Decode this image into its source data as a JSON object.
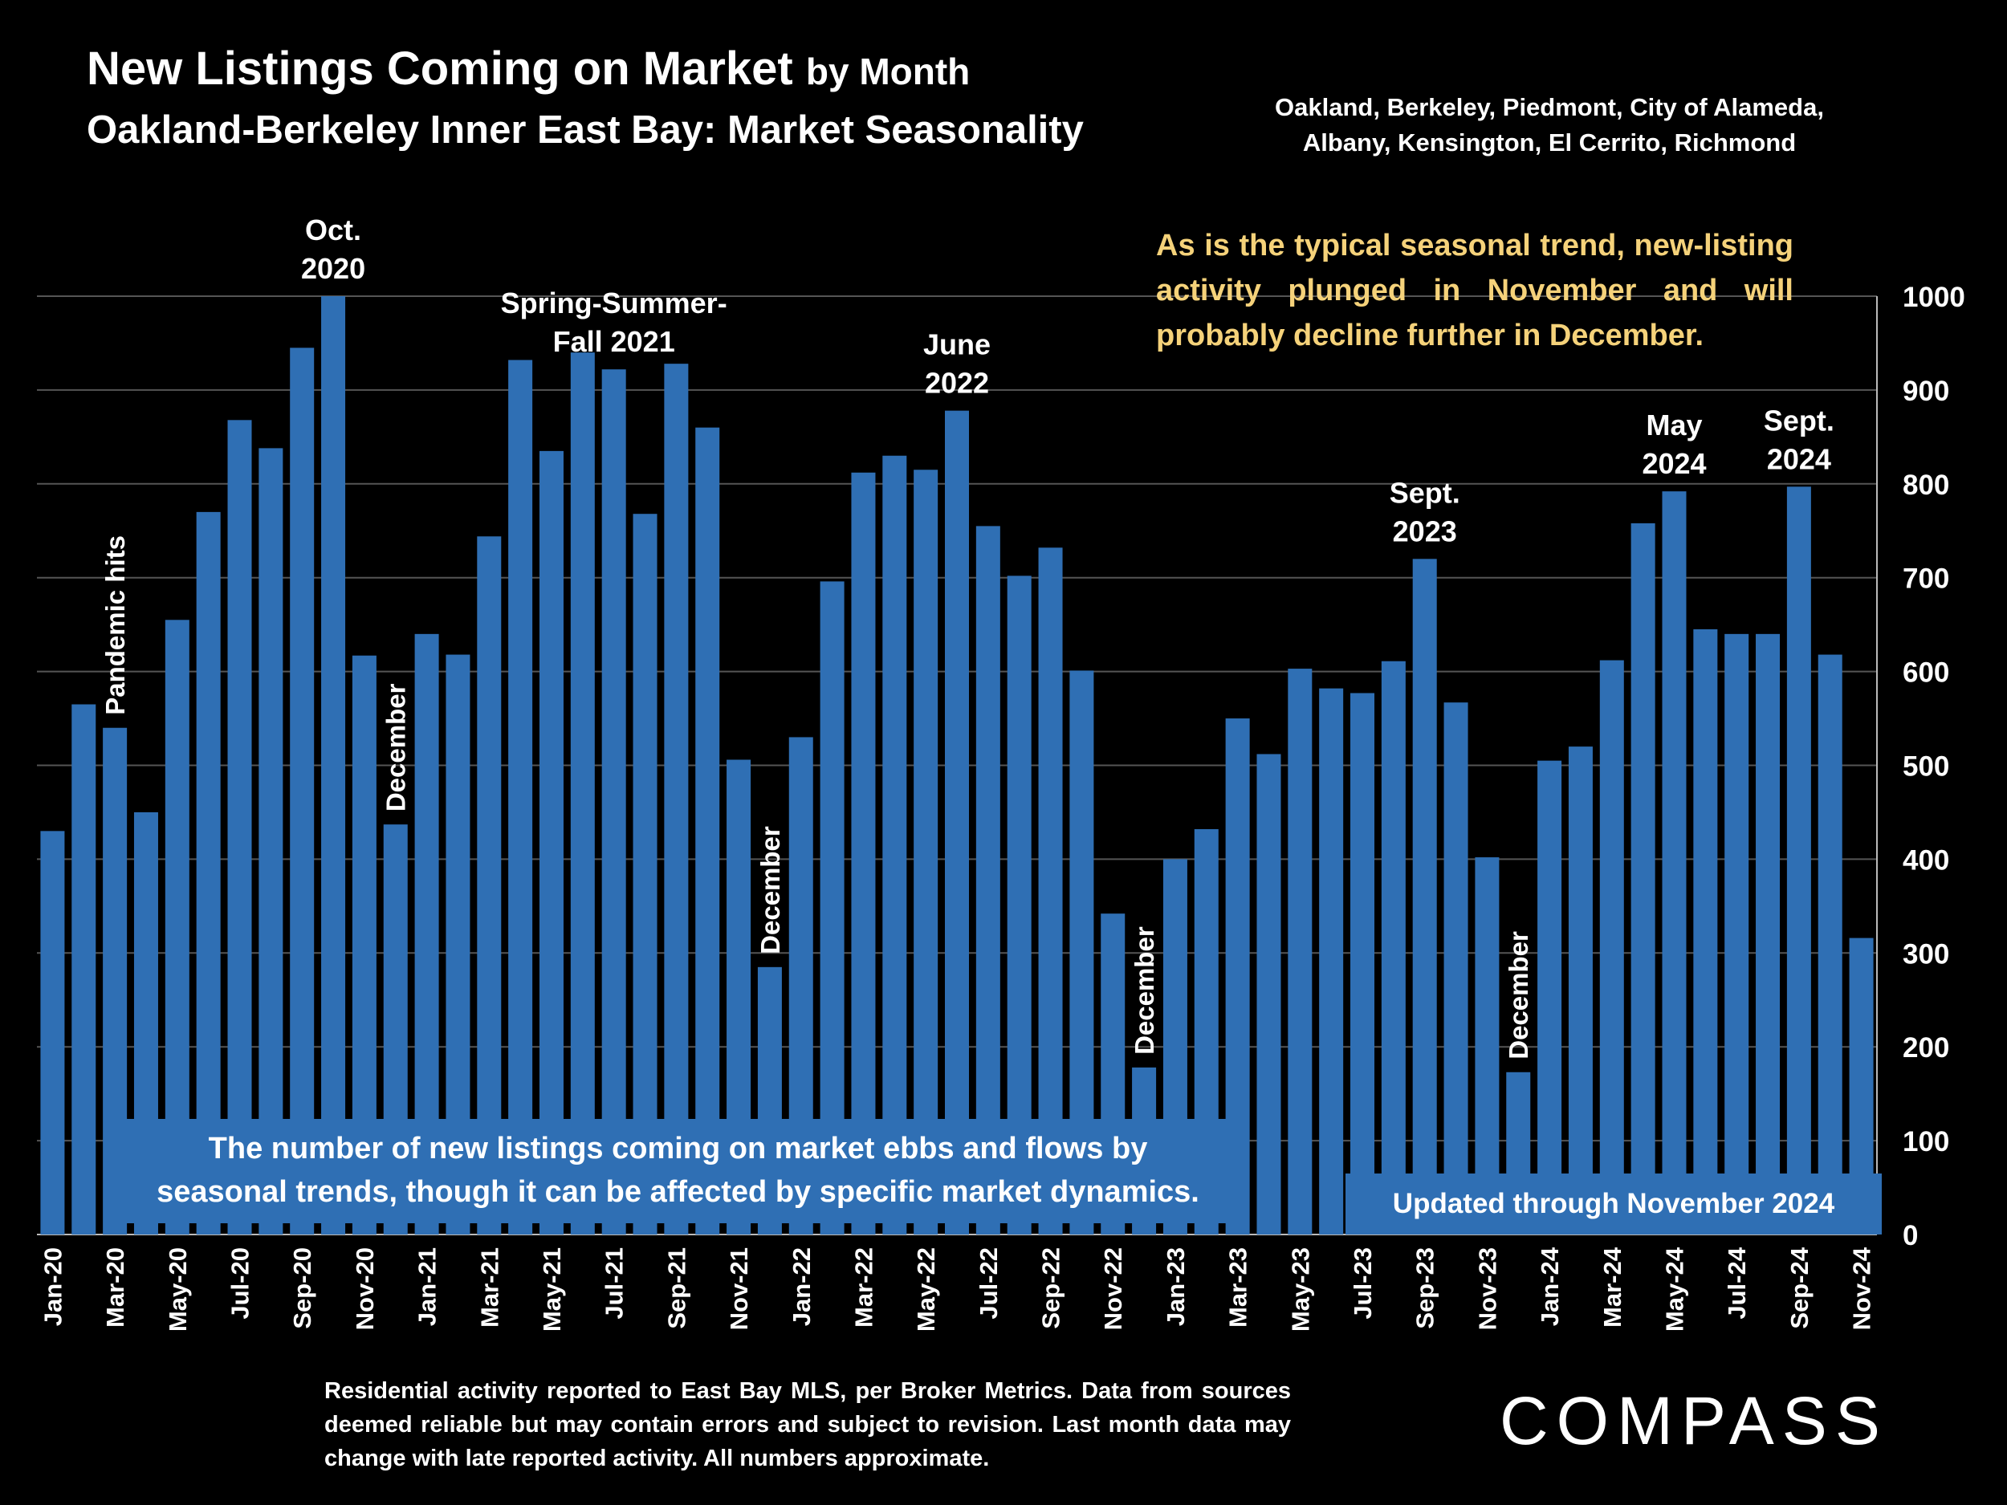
{
  "header": {
    "title_main": "New Listings Coming on Market",
    "title_suffix": "by Month",
    "subtitle": "Oakland-Berkeley Inner East Bay: Market Seasonality",
    "region_line1": "Oakland, Berkeley, Piedmont, City of Alameda,",
    "region_line2": "Albany, Kensington, El Cerrito, Richmond"
  },
  "callout": "As is the typical seasonal trend, new-listing activity plunged in November and will probably decline further in December.",
  "note_box": {
    "line1": "The number of new listings coming on market ebbs and flows by",
    "line2": "seasonal trends, though it can be affected by specific market dynamics."
  },
  "updated_label": "Updated through November 2024",
  "footnote": "Residential activity reported to East Bay MLS, per Broker Metrics. Data from sources deemed reliable but may contain errors and subject to revision. Last month data may change with late reported activity. All numbers approximate.",
  "logo": "COMPASS",
  "colors": {
    "bar": "#2f6fb4",
    "background": "#000000",
    "callout": "#f5d27a",
    "gridline": "#555555"
  },
  "chart_data": {
    "type": "bar",
    "x": [
      "Jan-20",
      "Feb-20",
      "Mar-20",
      "Apr-20",
      "May-20",
      "Jun-20",
      "Jul-20",
      "Aug-20",
      "Sep-20",
      "Oct-20",
      "Nov-20",
      "Dec-20",
      "Jan-21",
      "Feb-21",
      "Mar-21",
      "Apr-21",
      "May-21",
      "Jun-21",
      "Jul-21",
      "Aug-21",
      "Sep-21",
      "Oct-21",
      "Nov-21",
      "Dec-21",
      "Jan-22",
      "Feb-22",
      "Mar-22",
      "Apr-22",
      "May-22",
      "Jun-22",
      "Jul-22",
      "Aug-22",
      "Sep-22",
      "Oct-22",
      "Nov-22",
      "Dec-22",
      "Jan-23",
      "Feb-23",
      "Mar-23",
      "Apr-23",
      "May-23",
      "Jun-23",
      "Jul-23",
      "Aug-23",
      "Sep-23",
      "Oct-23",
      "Nov-23",
      "Dec-23",
      "Jan-24",
      "Feb-24",
      "Mar-24",
      "Apr-24",
      "May-24",
      "Jun-24",
      "Jul-24",
      "Aug-24",
      "Sep-24",
      "Oct-24",
      "Nov-24"
    ],
    "tick_labels": [
      "Jan-20",
      "Mar-20",
      "May-20",
      "Jul-20",
      "Sep-20",
      "Nov-20",
      "Jan-21",
      "Mar-21",
      "May-21",
      "Jul-21",
      "Sep-21",
      "Nov-21",
      "Jan-22",
      "Mar-22",
      "May-22",
      "Jul-22",
      "Sep-22",
      "Nov-22",
      "Jan-23",
      "Mar-23",
      "May-23",
      "Jul-23",
      "Sep-23",
      "Nov-23",
      "Jan-24",
      "Mar-24",
      "May-24",
      "Jul-24",
      "Sep-24",
      "Nov-24"
    ],
    "values": [
      430,
      565,
      540,
      450,
      655,
      770,
      868,
      838,
      945,
      1000,
      617,
      437,
      640,
      618,
      744,
      932,
      835,
      940,
      922,
      768,
      928,
      860,
      506,
      285,
      530,
      696,
      812,
      830,
      815,
      878,
      755,
      702,
      732,
      601,
      342,
      178,
      400,
      432,
      550,
      512,
      603,
      582,
      577,
      611,
      720,
      567,
      402,
      173,
      505,
      520,
      612,
      758,
      792,
      645,
      640,
      640,
      797,
      618,
      316
    ],
    "ylim": [
      0,
      1000
    ],
    "yticks": [
      0,
      100,
      200,
      300,
      400,
      500,
      600,
      700,
      800,
      900,
      1000
    ],
    "y_axis_side": "right",
    "grid": true,
    "annotations": [
      {
        "index": 2,
        "lines": [
          "Pandemic hits"
        ],
        "rotated": true
      },
      {
        "index": 9,
        "lines": [
          "Oct.",
          "2020"
        ]
      },
      {
        "index": 11,
        "lines": [
          "December"
        ],
        "rotated": true
      },
      {
        "index": 18,
        "lines": [
          "Spring-Summer-",
          "Fall  2021"
        ]
      },
      {
        "index": 23,
        "lines": [
          "December"
        ],
        "rotated": true
      },
      {
        "index": 29,
        "lines": [
          "June",
          "2022"
        ]
      },
      {
        "index": 35,
        "lines": [
          "December"
        ],
        "rotated": true
      },
      {
        "index": 44,
        "lines": [
          "Sept.",
          "2023"
        ]
      },
      {
        "index": 47,
        "lines": [
          "December"
        ],
        "rotated": true
      },
      {
        "index": 52,
        "lines": [
          "May",
          "2024"
        ]
      },
      {
        "index": 56,
        "lines": [
          "Sept.",
          "2024"
        ]
      }
    ]
  }
}
